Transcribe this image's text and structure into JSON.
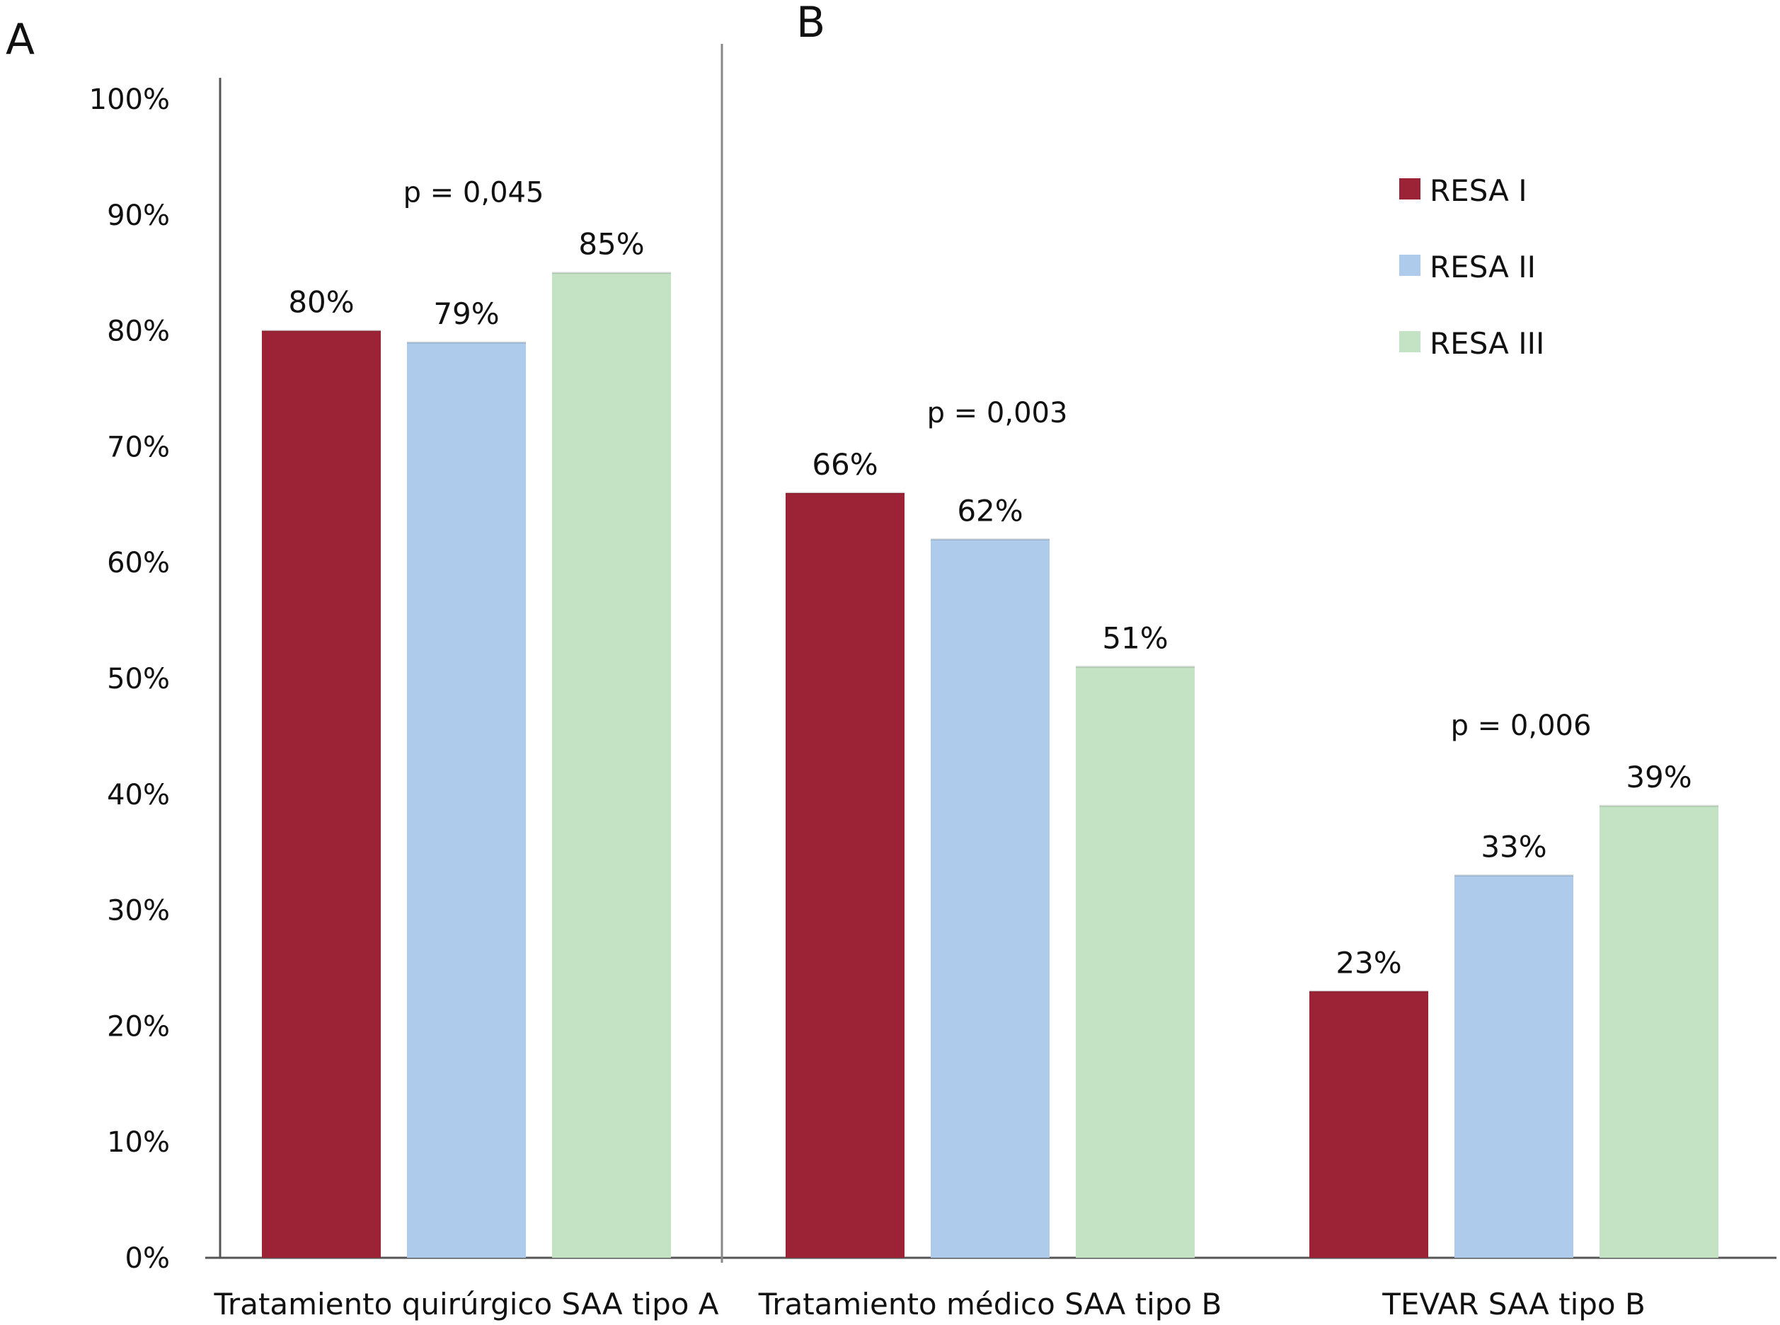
{
  "chart_data": {
    "type": "bar",
    "panels": [
      "A",
      "B"
    ],
    "categories": [
      "Tratamiento quirúrgico SAA tipo A",
      "Tratamiento médico SAA tipo B",
      "TEVAR SAA tipo B"
    ],
    "series": [
      {
        "name": "RESA I",
        "color": "#9b2335",
        "values": [
          80,
          66,
          23
        ],
        "labels": [
          "80%",
          "66%",
          "23%"
        ]
      },
      {
        "name": "RESA II",
        "color": "#aecbeb",
        "values": [
          79,
          62,
          33
        ],
        "labels": [
          "79%",
          "62%",
          "33%"
        ]
      },
      {
        "name": "RESA III",
        "color": "#c4e3c4",
        "values": [
          85,
          51,
          39
        ],
        "labels": [
          "85%",
          "51%",
          "39%"
        ]
      }
    ],
    "p_values": [
      "p = 0,045",
      "p = 0,003",
      "p = 0,006"
    ],
    "y_ticks": [
      "0%",
      "10%",
      "20%",
      "30%",
      "40%",
      "50%",
      "60%",
      "70%",
      "80%",
      "90%",
      "100%"
    ],
    "ylim": [
      0,
      100
    ],
    "title": "",
    "xlabel": "",
    "ylabel": "",
    "grid": false,
    "legend_position": "top-right"
  }
}
